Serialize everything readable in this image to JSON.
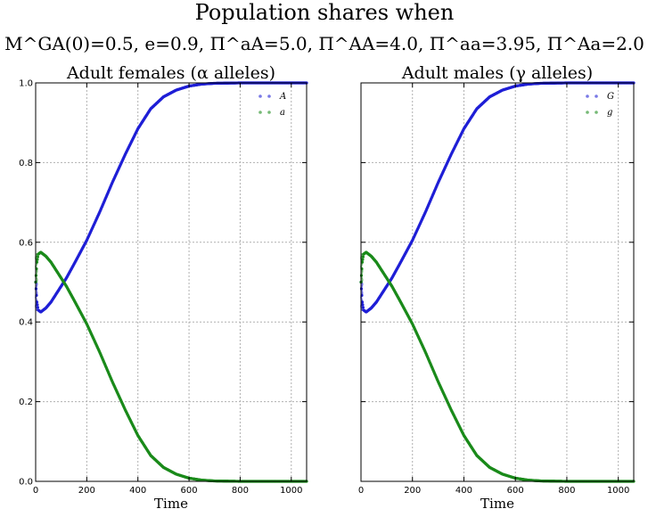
{
  "figure": {
    "title_line1": "Population shares when",
    "title_line2": "M^GA(0)=0.5, e=0.9, Π^aA=5.0, Π^AA=4.0, Π^aa=3.95, Π^Aa=2.0"
  },
  "colors": {
    "series1": "#1f1fd6",
    "series2": "#1a8a1a"
  },
  "chart_data": [
    {
      "type": "scatter",
      "title": "Adult females (α alleles)",
      "xlabel": "Time",
      "ylabel": "",
      "xlim": [
        0,
        1060
      ],
      "ylim": [
        0,
        1.0
      ],
      "xticks": [
        0,
        200,
        400,
        600,
        800,
        1000
      ],
      "yticks": [
        0.0,
        0.2,
        0.4,
        0.6,
        0.8,
        1.0
      ],
      "ytick_labels_visible": true,
      "grid": true,
      "legend": "top-right",
      "series": [
        {
          "name": "A",
          "color": "#1f1fd6",
          "points": [
            [
              0,
              0.5
            ],
            [
              5,
              0.45
            ],
            [
              10,
              0.43
            ],
            [
              20,
              0.425
            ],
            [
              40,
              0.435
            ],
            [
              60,
              0.45
            ],
            [
              80,
              0.47
            ],
            [
              100,
              0.49
            ],
            [
              120,
              0.51
            ],
            [
              150,
              0.545
            ],
            [
              200,
              0.605
            ],
            [
              250,
              0.675
            ],
            [
              300,
              0.75
            ],
            [
              350,
              0.82
            ],
            [
              400,
              0.885
            ],
            [
              450,
              0.935
            ],
            [
              500,
              0.965
            ],
            [
              550,
              0.982
            ],
            [
              600,
              0.992
            ],
            [
              650,
              0.997
            ],
            [
              700,
              0.999
            ],
            [
              800,
              1.0
            ],
            [
              900,
              1.0
            ],
            [
              1000,
              1.0
            ],
            [
              1060,
              1.0
            ]
          ]
        },
        {
          "name": "a",
          "color": "#1a8a1a",
          "points": [
            [
              0,
              0.5
            ],
            [
              5,
              0.55
            ],
            [
              10,
              0.57
            ],
            [
              20,
              0.575
            ],
            [
              40,
              0.565
            ],
            [
              60,
              0.55
            ],
            [
              80,
              0.53
            ],
            [
              100,
              0.51
            ],
            [
              120,
              0.49
            ],
            [
              150,
              0.455
            ],
            [
              200,
              0.395
            ],
            [
              250,
              0.325
            ],
            [
              300,
              0.25
            ],
            [
              350,
              0.18
            ],
            [
              400,
              0.115
            ],
            [
              450,
              0.065
            ],
            [
              500,
              0.035
            ],
            [
              550,
              0.018
            ],
            [
              600,
              0.008
            ],
            [
              650,
              0.003
            ],
            [
              700,
              0.001
            ],
            [
              800,
              0.0
            ],
            [
              900,
              0.0
            ],
            [
              1000,
              0.0
            ],
            [
              1060,
              0.0
            ]
          ]
        }
      ]
    },
    {
      "type": "scatter",
      "title": "Adult males (γ alleles)",
      "xlabel": "Time",
      "ylabel": "",
      "xlim": [
        0,
        1060
      ],
      "ylim": [
        0,
        1.0
      ],
      "xticks": [
        0,
        200,
        400,
        600,
        800,
        1000
      ],
      "yticks": [
        0.0,
        0.2,
        0.4,
        0.6,
        0.8,
        1.0
      ],
      "ytick_labels_visible": false,
      "grid": true,
      "legend": "top-right",
      "series": [
        {
          "name": "G",
          "color": "#1f1fd6",
          "points": [
            [
              0,
              0.5
            ],
            [
              5,
              0.45
            ],
            [
              10,
              0.43
            ],
            [
              20,
              0.425
            ],
            [
              40,
              0.435
            ],
            [
              60,
              0.45
            ],
            [
              80,
              0.47
            ],
            [
              100,
              0.49
            ],
            [
              120,
              0.51
            ],
            [
              150,
              0.545
            ],
            [
              200,
              0.605
            ],
            [
              250,
              0.675
            ],
            [
              300,
              0.75
            ],
            [
              350,
              0.82
            ],
            [
              400,
              0.885
            ],
            [
              450,
              0.935
            ],
            [
              500,
              0.965
            ],
            [
              550,
              0.982
            ],
            [
              600,
              0.992
            ],
            [
              650,
              0.997
            ],
            [
              700,
              0.999
            ],
            [
              800,
              1.0
            ],
            [
              900,
              1.0
            ],
            [
              1000,
              1.0
            ],
            [
              1060,
              1.0
            ]
          ]
        },
        {
          "name": "g",
          "color": "#1a8a1a",
          "points": [
            [
              0,
              0.5
            ],
            [
              5,
              0.55
            ],
            [
              10,
              0.57
            ],
            [
              20,
              0.575
            ],
            [
              40,
              0.565
            ],
            [
              60,
              0.55
            ],
            [
              80,
              0.53
            ],
            [
              100,
              0.51
            ],
            [
              120,
              0.49
            ],
            [
              150,
              0.455
            ],
            [
              200,
              0.395
            ],
            [
              250,
              0.325
            ],
            [
              300,
              0.25
            ],
            [
              350,
              0.18
            ],
            [
              400,
              0.115
            ],
            [
              450,
              0.065
            ],
            [
              500,
              0.035
            ],
            [
              550,
              0.018
            ],
            [
              600,
              0.008
            ],
            [
              650,
              0.003
            ],
            [
              700,
              0.001
            ],
            [
              800,
              0.0
            ],
            [
              900,
              0.0
            ],
            [
              1000,
              0.0
            ],
            [
              1060,
              0.0
            ]
          ]
        }
      ]
    }
  ]
}
